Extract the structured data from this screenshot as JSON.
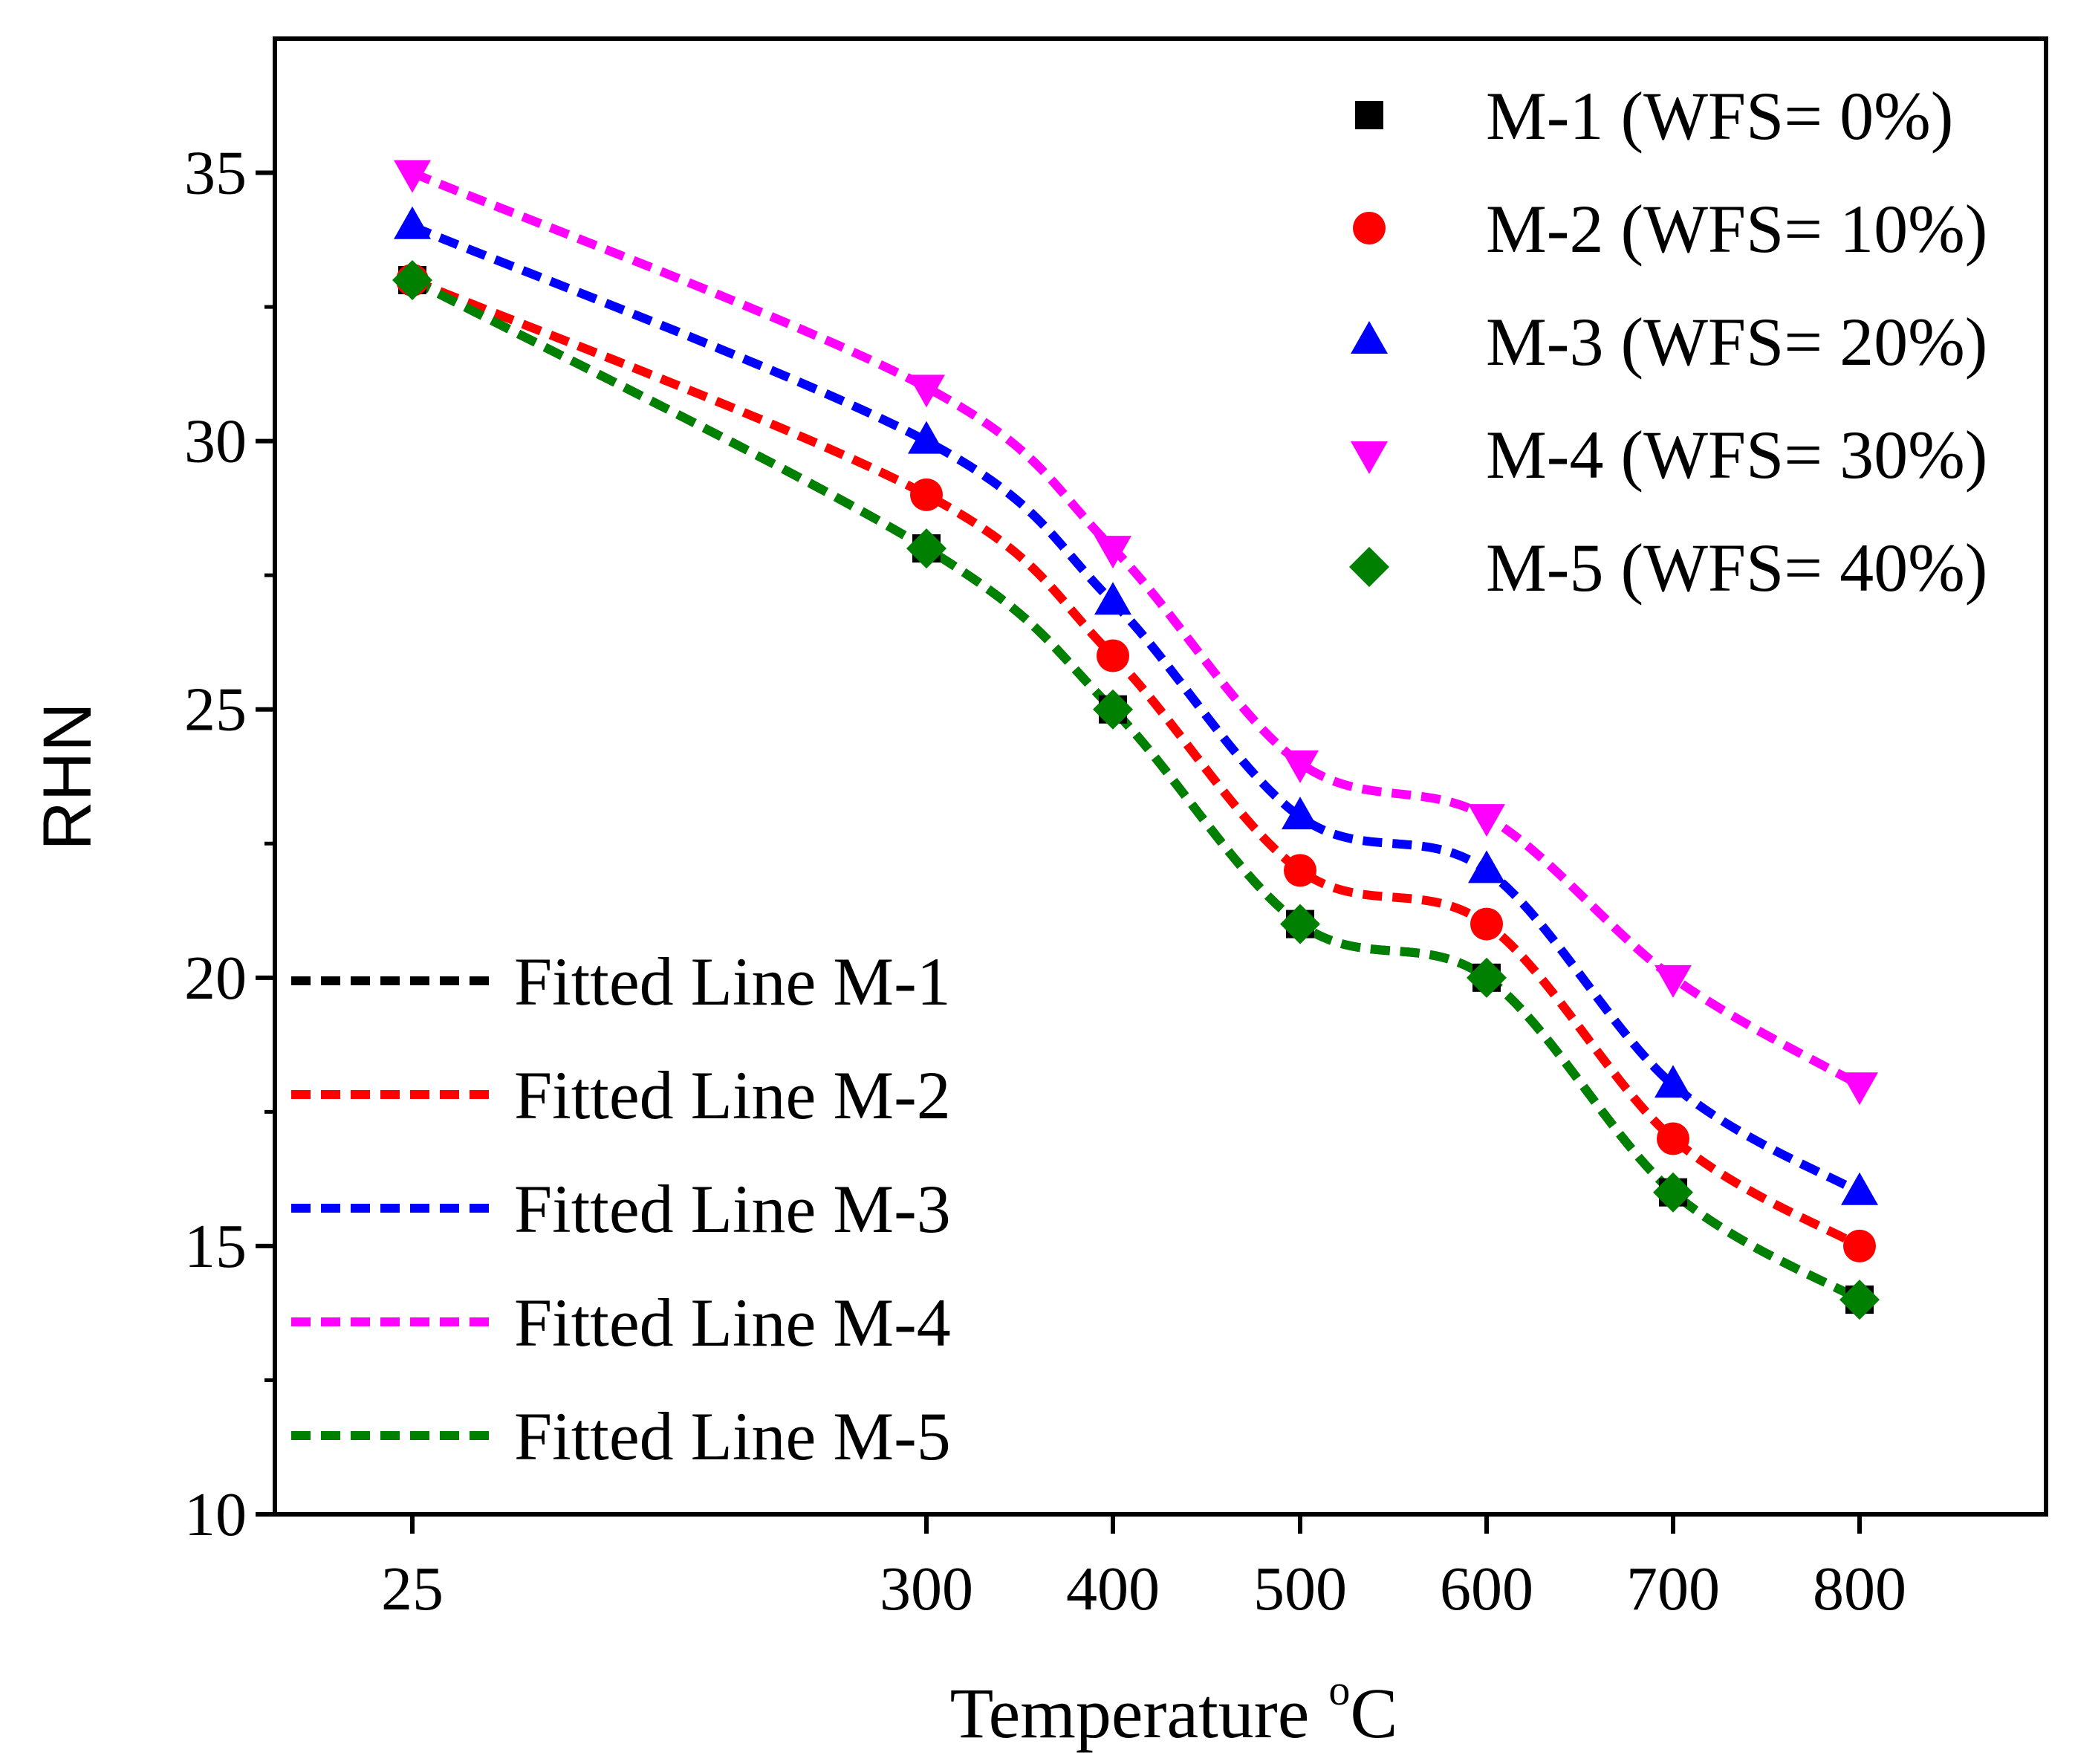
{
  "chart_data": {
    "type": "scatter",
    "title": "",
    "xlabel": "Temperature",
    "xlabel_unit_sup": "o",
    "xlabel_unit": "C",
    "ylabel": "RHN",
    "ylim": [
      10,
      37.5
    ],
    "yticks": [
      10,
      15,
      20,
      25,
      30,
      35
    ],
    "x": [
      25,
      300,
      400,
      500,
      600,
      700,
      800
    ],
    "x_tick_labels": [
      "25",
      "300",
      "400",
      "500",
      "600",
      "700",
      "800"
    ],
    "series": [
      {
        "name": "M-1 (WFS=  0%)",
        "fit_label": "Fitted Line M-1",
        "marker": "square",
        "color": "#000000",
        "values": [
          33,
          28,
          25,
          21,
          20,
          16,
          14
        ]
      },
      {
        "name": "M-2 (WFS= 10%)",
        "fit_label": "Fitted Line M-2",
        "marker": "circle",
        "color": "#ff0000",
        "values": [
          33,
          29,
          26,
          22,
          21,
          17,
          15
        ]
      },
      {
        "name": "M-3 (WFS= 20%)",
        "fit_label": "Fitted Line M-3",
        "marker": "triangle-up",
        "color": "#0000ff",
        "values": [
          34,
          30,
          27,
          23,
          22,
          18,
          16
        ]
      },
      {
        "name": "M-4 (WFS= 30%)",
        "fit_label": "Fitted Line M-4",
        "marker": "triangle-down",
        "color": "#ff00ff",
        "values": [
          35,
          31,
          28,
          24,
          23,
          20,
          18
        ]
      },
      {
        "name": "M-5 (WFS= 40%)",
        "fit_label": "Fitted Line M-5",
        "marker": "diamond",
        "color": "#008000",
        "values": [
          33,
          28,
          25,
          21,
          20,
          16,
          14
        ]
      }
    ],
    "legend_markers_position": "top-right",
    "legend_lines_position": "bottom-left",
    "grid": false
  }
}
